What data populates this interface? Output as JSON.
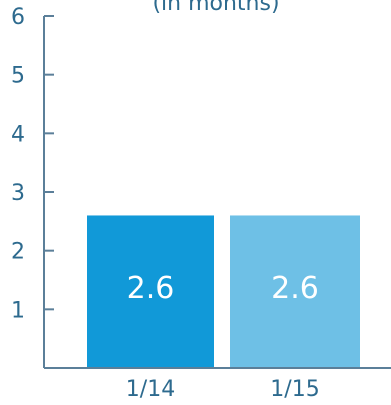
{
  "chart_data": {
    "type": "bar",
    "subtitle": "(in months)",
    "categories": [
      "1/14",
      "1/15"
    ],
    "values": [
      2.6,
      2.6
    ],
    "data_labels": [
      "2.6",
      "2.6"
    ],
    "ylim": [
      0,
      6
    ],
    "yticks": [
      "1",
      "2",
      "3",
      "4",
      "5",
      "6"
    ],
    "grid": false,
    "colors": {
      "bars": [
        "#1199d8",
        "#6ec0e6"
      ],
      "axis": "#5b7f99",
      "text": "#2d6a8e",
      "data_label": "#ffffff"
    }
  }
}
